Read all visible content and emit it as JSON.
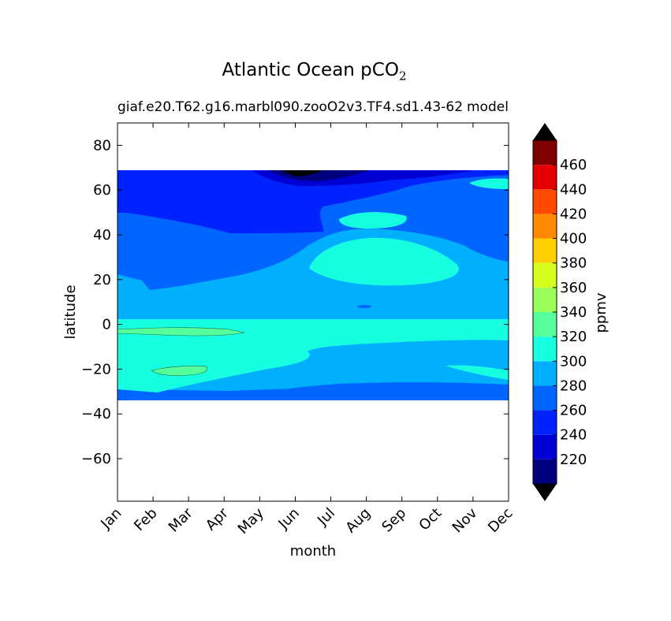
{
  "figure": {
    "title_main": "Atlantic Ocean pCO",
    "title_sub": "2",
    "subtitle_left": "giaf.e20.T62.g16.marbl090.zooO2v3.TF4.sd1.43-62",
    "subtitle_right": "model"
  },
  "chart_data": {
    "type": "contourf",
    "xlabel": "month",
    "ylabel": "latitude",
    "x_ticks": [
      "Jan",
      "Feb",
      "Mar",
      "Apr",
      "May",
      "Jun",
      "Jul",
      "Aug",
      "Sep",
      "Oct",
      "Nov",
      "Dec"
    ],
    "y_ticks": [
      80,
      60,
      40,
      20,
      0,
      -20,
      -40,
      -60
    ],
    "ylim": [
      -79,
      90
    ],
    "data_lat_range": [
      -34,
      68
    ],
    "colorbar": {
      "label": "ppmv",
      "levels": [
        200,
        220,
        240,
        260,
        280,
        300,
        320,
        340,
        360,
        380,
        400,
        420,
        440,
        460,
        480
      ],
      "tick_labels": [
        220,
        240,
        260,
        280,
        300,
        320,
        340,
        360,
        380,
        400,
        420,
        440,
        460
      ],
      "colors": [
        "#00007f",
        "#0000d4",
        "#0022ff",
        "#0066ff",
        "#00b0ff",
        "#16ffe1",
        "#55ff9a",
        "#9aff5a",
        "#d4ff1d",
        "#ffd000",
        "#ff8900",
        "#ff4a00",
        "#e40000",
        "#7f0000"
      ],
      "extend_low": "#000000",
      "extend_high": "#000000"
    },
    "regions": [
      {
        "level": 300,
        "lat_range": [
          -34,
          68
        ],
        "note": "background"
      },
      {
        "level": 280,
        "lat_range": [
          -34,
          -25
        ],
        "months": "all"
      },
      {
        "level": 320,
        "lat_range": [
          -30,
          3
        ],
        "months": "Jan-Jul and tropics"
      },
      {
        "level": 340,
        "lat_range": [
          -5,
          -1
        ],
        "months": "Jan-Mar"
      },
      {
        "level": 340,
        "lat_range": [
          -23,
          -19
        ],
        "months": "Feb-Mar"
      },
      {
        "level": 280,
        "lat_range": [
          15,
          65
        ],
        "months": "all"
      },
      {
        "level": 260,
        "lat_range": [
          30,
          68
        ],
        "months": "Apr-Jul"
      },
      {
        "level": 240,
        "lat_range": [
          62,
          68
        ],
        "months": "Jun-Jul"
      },
      {
        "level": 220,
        "lat_range": [
          64,
          68
        ],
        "months": "Jun"
      },
      {
        "level": 200,
        "lat_range": [
          66,
          68
        ],
        "months": "Jun"
      },
      {
        "level": 300,
        "lat_range": [
          18,
          37
        ],
        "months": "Jul-Sep"
      },
      {
        "level": 300,
        "lat_range": [
          43,
          50
        ],
        "months": "Aug"
      },
      {
        "level": 300,
        "lat_range": [
          62,
          66
        ],
        "months": "Dec"
      }
    ]
  }
}
